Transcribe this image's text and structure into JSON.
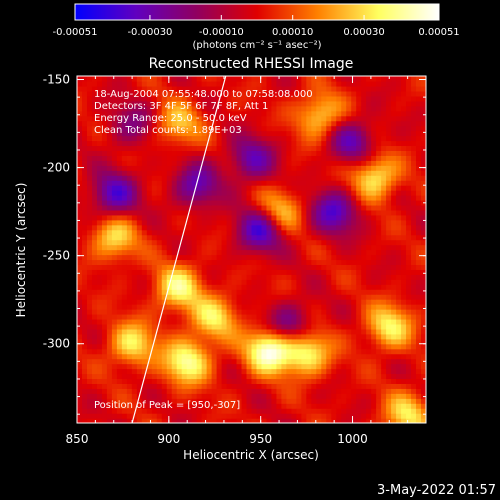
{
  "chart_data": {
    "type": "heatmap",
    "title": "Reconstructed RHESSI Image",
    "xlabel": "Heliocentric X (arcsec)",
    "ylabel": "Heliocentric Y (arcsec)",
    "xlim": [
      850,
      1040
    ],
    "ylim": [
      -345,
      -148
    ],
    "x_ticks": [
      "850",
      "900",
      "950",
      "1000"
    ],
    "y_ticks": [
      "-150",
      "-200",
      "-250",
      "-300"
    ],
    "x_tick_values": [
      850,
      900,
      950,
      1000
    ],
    "y_tick_values": [
      -150,
      -200,
      -250,
      -300
    ],
    "colorbar": {
      "range": [
        -0.00051,
        0.00051
      ],
      "tick_labels": [
        "-0.00051",
        "-0.00030",
        "-0.00010",
        "0.00010",
        "0.00030",
        "0.00051"
      ],
      "tick_values": [
        -0.00051,
        -0.0003,
        -0.0001,
        0.0001,
        0.0003,
        0.00051
      ],
      "units_label": "(photons cm⁻² s⁻¹ asec⁻²)",
      "colors": [
        "#0000ff",
        "#6000c0",
        "#900060",
        "#e00000",
        "#ff8000",
        "#ffff60",
        "#ffffff"
      ]
    },
    "info_lines": [
      "18-Aug-2004 07:55:48.000 to 07:58:08.000",
      "Detectors: 3F 4F 5F 6F 7F 8F, Att 1",
      "Energy Range: 25.0 - 50.0 keV",
      "Clean     Total counts: 1.89E+03"
    ],
    "peak_label": "Position of Peak = [950,-307]",
    "peak": [
      950,
      -307
    ],
    "limb_line": [
      [
        880,
        -345
      ],
      [
        931,
        -148
      ]
    ],
    "hot_spots": [
      {
        "x": 955,
        "y": -303,
        "value": 0.00051
      },
      {
        "x": 905,
        "y": -268,
        "value": 0.00035
      },
      {
        "x": 910,
        "y": -310,
        "value": 0.0004
      },
      {
        "x": 925,
        "y": -285,
        "value": 0.0003
      },
      {
        "x": 880,
        "y": -300,
        "value": 0.00032
      },
      {
        "x": 1012,
        "y": -205,
        "value": 0.00035
      },
      {
        "x": 1020,
        "y": -290,
        "value": 0.00033
      },
      {
        "x": 982,
        "y": -170,
        "value": 0.0003
      },
      {
        "x": 870,
        "y": -240,
        "value": 0.0003
      },
      {
        "x": 975,
        "y": -305,
        "value": 0.00038
      },
      {
        "x": 1030,
        "y": -340,
        "value": 0.0003
      },
      {
        "x": 905,
        "y": -175,
        "value": 0.00025
      },
      {
        "x": 960,
        "y": -225,
        "value": 0.00028
      }
    ],
    "cold_spots": [
      {
        "x": 870,
        "y": -215,
        "value": -0.00035
      },
      {
        "x": 915,
        "y": -210,
        "value": -0.0003
      },
      {
        "x": 950,
        "y": -235,
        "value": -0.0004
      },
      {
        "x": 990,
        "y": -225,
        "value": -0.00035
      },
      {
        "x": 1000,
        "y": -185,
        "value": -0.0003
      },
      {
        "x": 945,
        "y": -195,
        "value": -0.0003
      },
      {
        "x": 965,
        "y": -290,
        "value": -0.0003
      },
      {
        "x": 880,
        "y": -175,
        "value": -0.0002
      }
    ]
  },
  "footer": {
    "date": "3-May-2022 01:57"
  }
}
